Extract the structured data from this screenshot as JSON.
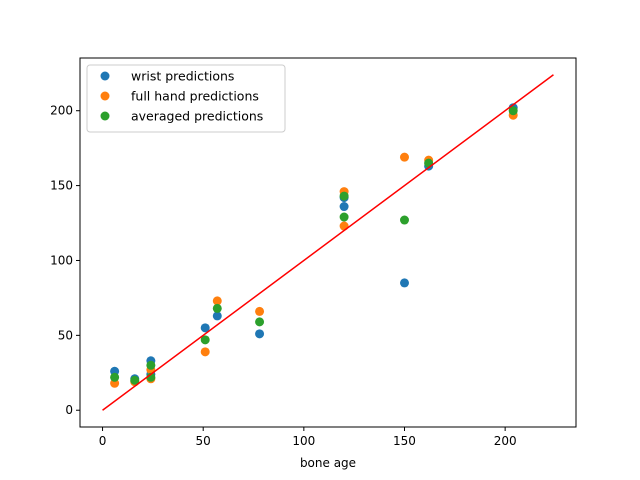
{
  "chart_data": {
    "type": "scatter",
    "xlabel": "bone age",
    "ylabel": "",
    "xlim": [
      -11.2,
      235.2
    ],
    "ylim": [
      -11.2,
      235.2
    ],
    "xticks": [
      0,
      50,
      100,
      150,
      200
    ],
    "yticks": [
      0,
      50,
      100,
      150,
      200
    ],
    "grid": false,
    "legend": "top-left",
    "series": [
      {
        "name": "wrist predictions",
        "color": "#1f77b4",
        "points": [
          [
            6,
            26
          ],
          [
            16,
            21
          ],
          [
            24,
            33
          ],
          [
            24,
            24
          ],
          [
            51,
            55
          ],
          [
            57,
            63
          ],
          [
            78,
            51
          ],
          [
            120,
            136
          ],
          [
            120,
            142
          ],
          [
            150,
            85
          ],
          [
            162,
            163
          ],
          [
            204,
            202
          ]
        ]
      },
      {
        "name": "full hand predictions",
        "color": "#ff7f0e",
        "points": [
          [
            6,
            18
          ],
          [
            16,
            19
          ],
          [
            24,
            27
          ],
          [
            24,
            21
          ],
          [
            51,
            39
          ],
          [
            57,
            73
          ],
          [
            78,
            66
          ],
          [
            120,
            146
          ],
          [
            120,
            123
          ],
          [
            150,
            169
          ],
          [
            162,
            167
          ],
          [
            204,
            197
          ]
        ]
      },
      {
        "name": "averaged predictions",
        "color": "#2ca02c",
        "points": [
          [
            6,
            22
          ],
          [
            16,
            20
          ],
          [
            24,
            30
          ],
          [
            24,
            22
          ],
          [
            51,
            47
          ],
          [
            57,
            68
          ],
          [
            78,
            59
          ],
          [
            120,
            143
          ],
          [
            120,
            129
          ],
          [
            150,
            127
          ],
          [
            162,
            165
          ],
          [
            204,
            200
          ]
        ]
      }
    ],
    "reference_line": {
      "color": "#ff0000",
      "from": [
        0,
        0
      ],
      "to": [
        224,
        224
      ]
    }
  }
}
